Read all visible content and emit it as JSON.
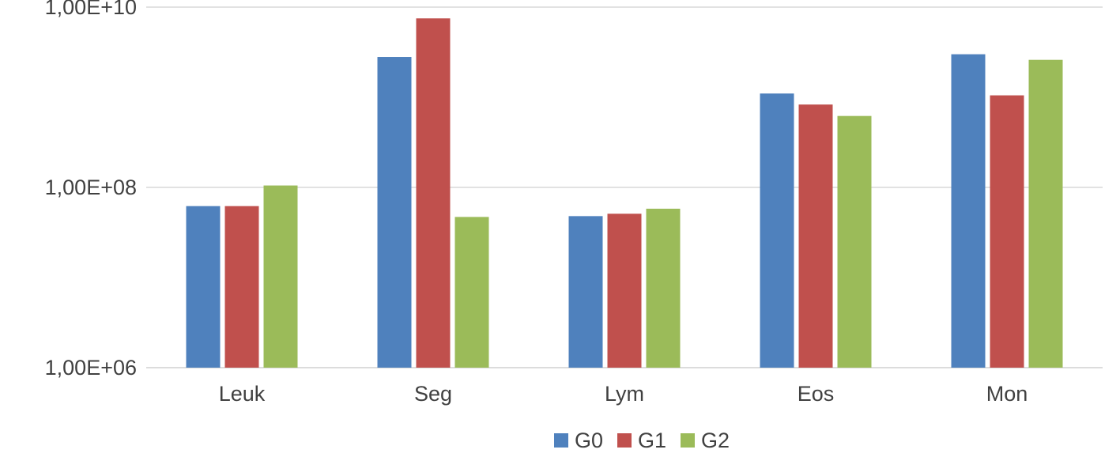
{
  "chart_data": {
    "type": "bar",
    "scale": "log",
    "categories": [
      "Leuk",
      "Seg",
      "Lym",
      "Eos",
      "Mon"
    ],
    "series": [
      {
        "name": "G0",
        "color": "#4f81bd",
        "values": [
          62000000,
          2800000000,
          48000000,
          1100000000,
          3000000000
        ]
      },
      {
        "name": "G1",
        "color": "#c0504d",
        "values": [
          62000000,
          7500000000,
          51000000,
          830000000,
          1050000000
        ]
      },
      {
        "name": "G2",
        "color": "#9bbb59",
        "values": [
          105000000,
          47000000,
          58000000,
          620000000,
          2600000000
        ]
      }
    ],
    "ylim": [
      1000000,
      10000000000
    ],
    "yticks": [
      {
        "value": 1000000,
        "label": "1,00E+06"
      },
      {
        "value": 100000000,
        "label": "1,00E+08"
      },
      {
        "value": 10000000000,
        "label": "1,00E+10"
      }
    ],
    "grid": true,
    "legend_position": "bottom",
    "title": "",
    "xlabel": "",
    "ylabel": ""
  }
}
